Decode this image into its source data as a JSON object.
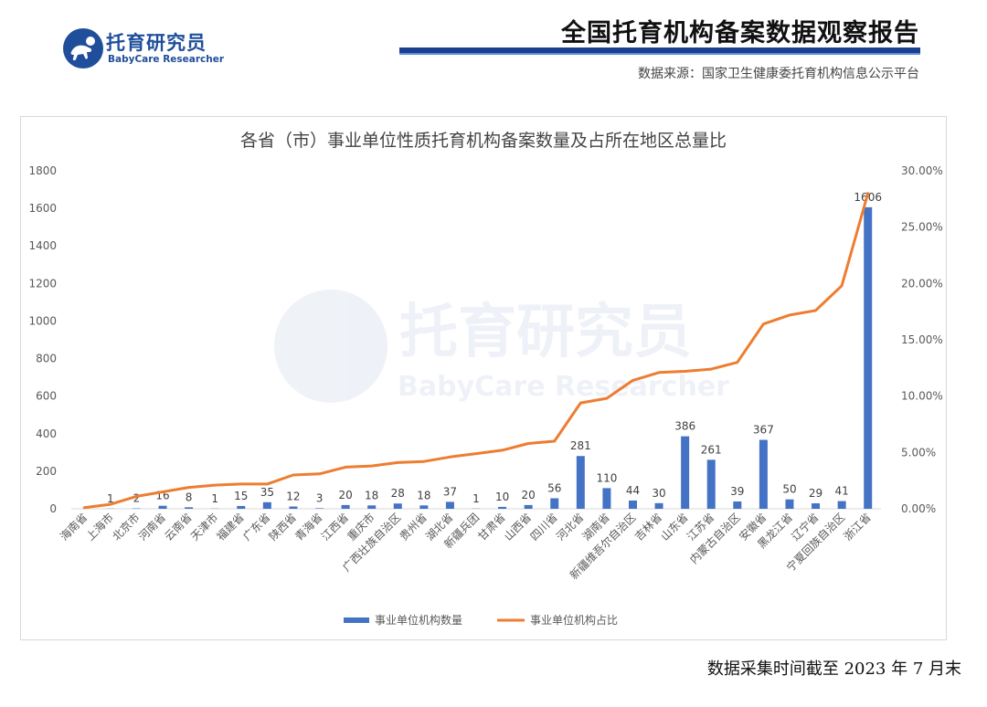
{
  "brand": {
    "name": "托育研究员",
    "subtitle": "BabyCare Researcher",
    "logo_icon": "baby-crawling-icon"
  },
  "report": {
    "title": "全国托育机构备案数据观察报告",
    "source": "数据来源：国家卫生健康委托育机构信息公示平台"
  },
  "watermark": {
    "name": "托育研究员",
    "subtitle": "BabyCare Researcher"
  },
  "footnote": "数据采集时间截至 2023 年 7 月末",
  "colors": {
    "bar": "#4472c4",
    "line": "#ed7d31",
    "brand": "#1f4e9a",
    "title_bar": "#1a3f8c"
  },
  "chart_data": {
    "type": "bar",
    "title": "各省（市）事业单位性质托育机构备案数量及占所在地区总量比",
    "categories": [
      "海南省",
      "上海市",
      "北京市",
      "河南省",
      "云南省",
      "天津市",
      "福建省",
      "广东省",
      "陕西省",
      "青海省",
      "江西省",
      "重庆市",
      "广西壮族自治区",
      "贵州省",
      "湖北省",
      "新疆兵团",
      "甘肃省",
      "山西省",
      "四川省",
      "河北省",
      "湖南省",
      "新疆维吾尔自治区",
      "吉林省",
      "山东省",
      "江苏省",
      "内蒙古自治区",
      "安徽省",
      "黑龙江省",
      "辽宁省",
      "宁夏回族自治区",
      "浙江省"
    ],
    "series": [
      {
        "name": "事业单位机构数量",
        "type": "bar",
        "axis": "left",
        "color": "#4472c4",
        "values": [
          0,
          1,
          2,
          16,
          8,
          1,
          15,
          35,
          12,
          3,
          20,
          18,
          28,
          18,
          37,
          1,
          10,
          20,
          56,
          281,
          110,
          44,
          30,
          386,
          261,
          39,
          367,
          50,
          29,
          41,
          1606
        ],
        "labels": [
          "",
          "1",
          "2",
          "16",
          "8",
          "1",
          "15",
          "35",
          "12",
          "3",
          "20",
          "18",
          "28",
          "18",
          "37",
          "1",
          "10",
          "20",
          "56",
          "281",
          "110",
          "44",
          "30",
          "386",
          "261",
          "39",
          "367",
          "50",
          "29",
          "41",
          "1606"
        ]
      },
      {
        "name": "事业单位机构占比",
        "type": "line",
        "axis": "right",
        "color": "#ed7d31",
        "values": [
          0.1,
          0.4,
          1.1,
          1.5,
          1.9,
          2.1,
          2.2,
          2.2,
          3.0,
          3.1,
          3.7,
          3.8,
          4.1,
          4.2,
          4.6,
          4.9,
          5.2,
          5.8,
          6.0,
          9.4,
          9.8,
          11.4,
          12.1,
          12.2,
          12.4,
          13.0,
          16.4,
          17.2,
          17.6,
          19.8,
          28.0
        ]
      }
    ],
    "y_left": {
      "min": 0,
      "max": 1800,
      "ticks": [
        "0",
        "200",
        "400",
        "600",
        "800",
        "1000",
        "1200",
        "1400",
        "1600",
        "1800"
      ]
    },
    "y_right": {
      "min": 0,
      "max": 30,
      "unit": "%",
      "ticks": [
        "0.00%",
        "5.00%",
        "10.00%",
        "15.00%",
        "20.00%",
        "25.00%",
        "30.00%"
      ]
    },
    "grid": false,
    "legend": "bottom-center"
  }
}
